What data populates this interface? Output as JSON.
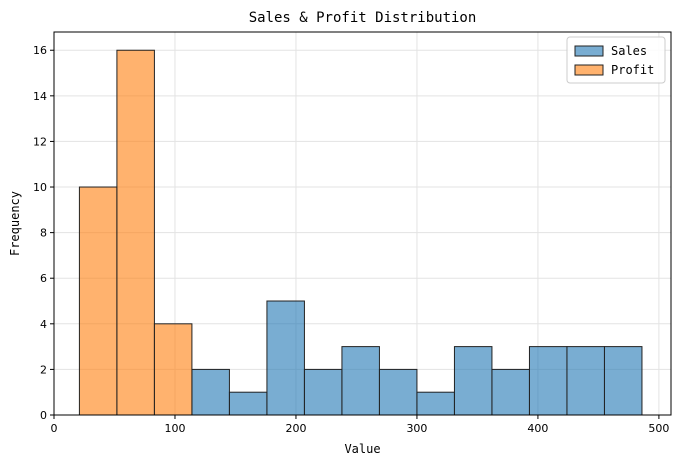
{
  "chart_data": {
    "type": "bar",
    "title": "Sales & Profit Distribution",
    "xlabel": "Value",
    "ylabel": "Frequency",
    "xlim": [
      0,
      510
    ],
    "ylim": [
      0,
      16.8
    ],
    "xticks": [
      0,
      100,
      200,
      300,
      400,
      500
    ],
    "yticks": [
      0,
      2,
      4,
      6,
      8,
      10,
      12,
      14,
      16
    ],
    "grid": true,
    "legend_position": "top-right",
    "series": [
      {
        "name": "Sales",
        "color": "#1f77b4",
        "bins": [
          {
            "x0": 114,
            "x1": 145,
            "count": 2
          },
          {
            "x0": 145,
            "x1": 176,
            "count": 1
          },
          {
            "x0": 176,
            "x1": 207,
            "count": 5
          },
          {
            "x0": 207,
            "x1": 238,
            "count": 2
          },
          {
            "x0": 238,
            "x1": 269,
            "count": 3
          },
          {
            "x0": 269,
            "x1": 300,
            "count": 2
          },
          {
            "x0": 300,
            "x1": 331,
            "count": 1
          },
          {
            "x0": 331,
            "x1": 362,
            "count": 3
          },
          {
            "x0": 362,
            "x1": 393,
            "count": 2
          },
          {
            "x0": 393,
            "x1": 424,
            "count": 3
          },
          {
            "x0": 424,
            "x1": 455,
            "count": 3
          },
          {
            "x0": 455,
            "x1": 486,
            "count": 3
          }
        ]
      },
      {
        "name": "Profit",
        "color": "#ff7f0e",
        "bins": [
          {
            "x0": 21,
            "x1": 52,
            "count": 10
          },
          {
            "x0": 52,
            "x1": 83,
            "count": 16
          },
          {
            "x0": 83,
            "x1": 114,
            "count": 4
          }
        ]
      }
    ]
  }
}
